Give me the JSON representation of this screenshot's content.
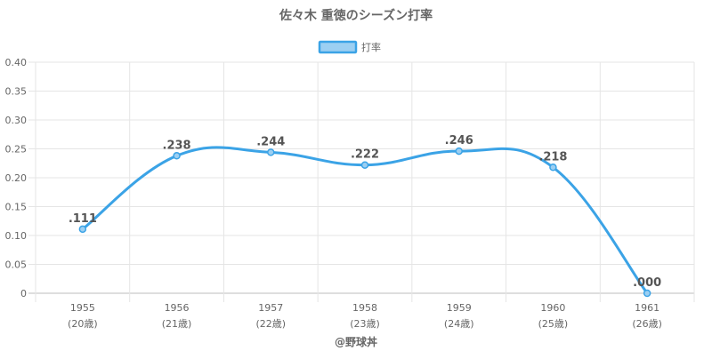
{
  "chart_data": {
    "type": "line",
    "title": "佐々木 重徳のシーズン打率",
    "categories": [
      "1955",
      "1956",
      "1957",
      "1958",
      "1959",
      "1960",
      "1961"
    ],
    "category_sublabels": [
      "(20歳)",
      "(21歳)",
      "(22歳)",
      "(23歳)",
      "(24歳)",
      "(25歳)",
      "(26歳)"
    ],
    "series": [
      {
        "name": "打率",
        "values": [
          0.111,
          0.238,
          0.244,
          0.222,
          0.246,
          0.218,
          0.0
        ],
        "labels": [
          ".111",
          ".238",
          ".244",
          ".222",
          ".246",
          ".218",
          ".000"
        ],
        "color": "#3ba3e6",
        "fill": "#9ccff2"
      }
    ],
    "y_ticks": [
      "0",
      "0.05",
      "0.10",
      "0.15",
      "0.20",
      "0.25",
      "0.30",
      "0.35",
      "0.40"
    ],
    "ylim": [
      0,
      0.4
    ],
    "xlabel": "",
    "ylabel": "",
    "grid": true,
    "legend": "top-center",
    "smooth": true
  },
  "credit": "@野球丼"
}
